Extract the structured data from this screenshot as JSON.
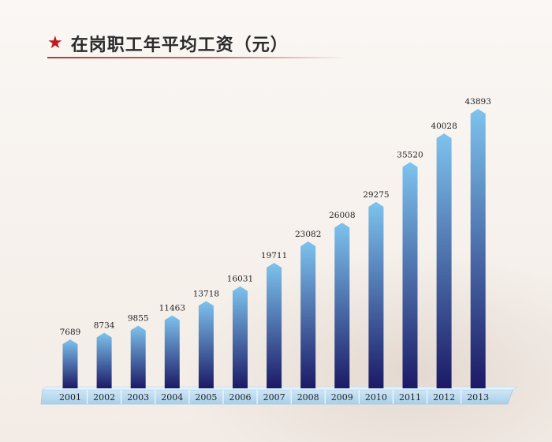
{
  "header": {
    "title": "在岗职工年平均工资（元）",
    "star_icon": "star-icon",
    "star_color": "#c8161e"
  },
  "chart_data": {
    "type": "bar",
    "title": "在岗职工年平均工资（元）",
    "xlabel": "",
    "ylabel": "",
    "categories": [
      "2001",
      "2002",
      "2003",
      "2004",
      "2005",
      "2006",
      "2007",
      "2008",
      "2009",
      "2010",
      "2011",
      "2012",
      "2013"
    ],
    "values": [
      7689,
      8734,
      9855,
      11463,
      13718,
      16031,
      19711,
      23082,
      26008,
      29275,
      35520,
      40028,
      43893
    ],
    "ylim": [
      0,
      45000
    ],
    "grid": false,
    "bar_gradient": [
      "#7ec3ee",
      "#1b1a66"
    ]
  }
}
